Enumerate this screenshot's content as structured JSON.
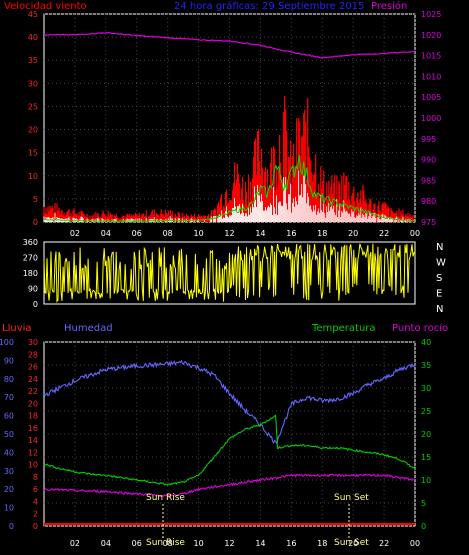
{
  "colors": {
    "wind": "#ff0000",
    "gust": "#ffffff",
    "windAvg": "#00dd00",
    "pressure": "#dd00dd",
    "direction": "#ffff00",
    "humidity": "#6666ff",
    "temperature": "#00cc00",
    "dewpoint": "#dd00dd",
    "rain": "#ff0000",
    "sun": "#ffff88",
    "axis": "#ffffff",
    "grid": "#444444"
  },
  "header": {
    "wind_title": "Velocidad viento",
    "center_title": "24 hora gráficas: 29 Septiembre 2015",
    "pressure_title": "Presión"
  },
  "lower_header": {
    "rain": "Lluvia",
    "humidity": "Humedad",
    "temperature": "Temperatura",
    "dewpoint": "Punto rocío"
  },
  "sun": {
    "rise_label": "Sun Rise",
    "set_label": "Sun Set"
  },
  "chart_data": [
    {
      "type": "line",
      "name": "wind-pressure",
      "title": "Velocidad viento",
      "left_axis": {
        "ticks": [
          0,
          5,
          10,
          15,
          20,
          25,
          30,
          35,
          40,
          45
        ],
        "range": [
          0,
          45
        ]
      },
      "right_axis": {
        "label": "Presión",
        "ticks": [
          975,
          980,
          985,
          990,
          995,
          1000,
          1005,
          1010,
          1015,
          1020,
          1025
        ],
        "range": [
          975,
          1025
        ]
      },
      "x_ticks": [
        "02",
        "04",
        "06",
        "08",
        "10",
        "12",
        "14",
        "16",
        "18",
        "20",
        "22",
        "00"
      ],
      "x_range_hours": [
        0,
        24
      ],
      "pressure_series": {
        "x": [
          0,
          2,
          4,
          6,
          8,
          10,
          12,
          14,
          16,
          18,
          20,
          22,
          24
        ],
        "values": [
          1020,
          1020,
          1020.5,
          1019.8,
          1019.3,
          1018.8,
          1018.5,
          1017.5,
          1015.8,
          1014.5,
          1015.2,
          1015.5,
          1016
        ]
      },
      "wind_peaks": {
        "x": [
          0,
          1,
          2,
          3,
          4,
          5,
          6,
          7,
          8,
          9,
          10,
          10.5,
          11,
          11.5,
          12,
          12.5,
          13,
          13.5,
          14,
          14.5,
          15,
          15.5,
          16,
          16.5,
          17,
          17.5,
          18,
          18.5,
          19,
          19.5,
          20,
          20.5,
          21,
          21.5,
          22,
          22.5,
          23,
          24
        ],
        "values": [
          5,
          4,
          3,
          2,
          3,
          2,
          2,
          3,
          3,
          2,
          2,
          2,
          3,
          8,
          12,
          15,
          10,
          16,
          24,
          15,
          22,
          30,
          17,
          26,
          28,
          20,
          12,
          11,
          10,
          13,
          9,
          9,
          6,
          5,
          5,
          3,
          3,
          2
        ]
      },
      "wind_avg": {
        "x": [
          0,
          2,
          4,
          6,
          8,
          10,
          11,
          12,
          13,
          13.5,
          14,
          14.5,
          15,
          15.5,
          16,
          16.5,
          17,
          17.5,
          18,
          19,
          20,
          21,
          22,
          23,
          24
        ],
        "values": [
          0.5,
          0.3,
          0.2,
          0.2,
          0.3,
          0.4,
          0.8,
          2,
          3,
          4,
          7,
          6,
          12,
          8,
          10,
          14,
          10,
          6,
          5,
          4,
          3,
          2,
          1,
          0.5,
          0.4
        ]
      }
    },
    {
      "type": "scatter",
      "name": "wind-direction",
      "left_axis": {
        "ticks": [
          0,
          90,
          180,
          270,
          360
        ],
        "range": [
          0,
          360
        ]
      },
      "right_labels": [
        "N",
        "W",
        "S",
        "E",
        "N"
      ],
      "x_range_hours": [
        0,
        24
      ]
    },
    {
      "type": "line",
      "name": "humidity-temperature",
      "axes": {
        "outer_left": {
          "label": "Lluvia",
          "ticks": [
            0,
            10,
            20,
            30,
            40,
            50,
            60,
            70,
            80,
            90,
            100
          ]
        },
        "inner_left": {
          "label": "Humedad",
          "ticks": [
            0,
            2,
            4,
            6,
            8,
            10,
            12,
            14,
            16,
            18,
            20,
            22,
            24,
            26,
            28,
            30
          ]
        },
        "right": {
          "label": "Temperatura",
          "ticks": [
            0,
            5,
            10,
            15,
            20,
            25,
            30,
            35,
            40
          ],
          "range": [
            0,
            40
          ]
        }
      },
      "x_ticks": [
        "02",
        "04",
        "06",
        "08",
        "10",
        "12",
        "14",
        "16",
        "18",
        "20",
        "22",
        "00"
      ],
      "humidity": {
        "x": [
          0,
          1,
          2,
          3,
          4,
          5,
          6,
          7,
          8,
          9,
          10,
          11,
          12,
          13,
          14,
          15,
          16,
          17,
          18,
          19,
          20,
          21,
          22,
          23,
          24
        ],
        "values": [
          71,
          75,
          79,
          82,
          85,
          86,
          87,
          87.5,
          88,
          89,
          86,
          82,
          72,
          63,
          55,
          45,
          66,
          70,
          68,
          69,
          72,
          77,
          80,
          85,
          88
        ]
      },
      "temperature": {
        "x": [
          0,
          1,
          2,
          3,
          4,
          5,
          6,
          7,
          8,
          9,
          10,
          11,
          12,
          13,
          14,
          15,
          15.1,
          16,
          17,
          18,
          19,
          20,
          21,
          22,
          23,
          24
        ],
        "values": [
          13.5,
          12.5,
          11.8,
          11.3,
          11,
          10.5,
          10,
          9.5,
          9,
          9.5,
          11,
          15,
          19,
          21,
          22,
          24,
          17,
          17.5,
          17.5,
          17,
          17,
          16.5,
          16,
          15.5,
          14.5,
          12.5
        ]
      },
      "dewpoint": {
        "x": [
          0,
          2,
          4,
          6,
          8,
          9,
          10,
          12,
          14,
          15,
          16,
          18,
          20,
          22,
          23,
          24
        ],
        "values": [
          8,
          7.7,
          7.5,
          7,
          6.5,
          7,
          8,
          9,
          10,
          10.5,
          11,
          11,
          11,
          11,
          10.5,
          10
        ]
      },
      "rain": {
        "x": [
          0,
          24
        ],
        "values": [
          0,
          0
        ]
      }
    }
  ]
}
